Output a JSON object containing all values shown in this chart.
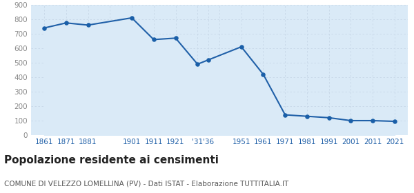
{
  "years": [
    1861,
    1871,
    1881,
    1901,
    1911,
    1921,
    1931,
    1936,
    1951,
    1961,
    1971,
    1981,
    1991,
    2001,
    2011,
    2021
  ],
  "population": [
    740,
    775,
    760,
    810,
    660,
    670,
    490,
    520,
    610,
    420,
    140,
    130,
    120,
    100,
    100,
    95
  ],
  "x_labels": [
    "1861",
    "1871",
    "1881",
    "",
    "1901",
    "1911",
    "1921",
    "'31",
    "'36",
    "",
    "1951",
    "1961",
    "1971",
    "1981",
    "1991",
    "2001",
    "2011",
    "2021"
  ],
  "x_tick_years": [
    1861,
    1871,
    1881,
    1891,
    1901,
    1911,
    1921,
    1931,
    1936,
    1941,
    1951,
    1961,
    1971,
    1981,
    1991,
    2001,
    2011,
    2021
  ],
  "line_color": "#2060a8",
  "fill_color": "#daeaf7",
  "marker_color": "#1a5fa8",
  "background_color": "#ffffff",
  "grid_color": "#c8d8e8",
  "ylim": [
    0,
    900
  ],
  "yticks": [
    0,
    100,
    200,
    300,
    400,
    500,
    600,
    700,
    800,
    900
  ],
  "title": "Popolazione residente ai censimenti",
  "subtitle": "COMUNE DI VELEZZO LOMELLINA (PV) - Dati ISTAT - Elaborazione TUTTITALIA.IT",
  "title_fontsize": 11,
  "subtitle_fontsize": 7.5,
  "tick_color": "#888888",
  "x_tick_color": "#2060a8"
}
